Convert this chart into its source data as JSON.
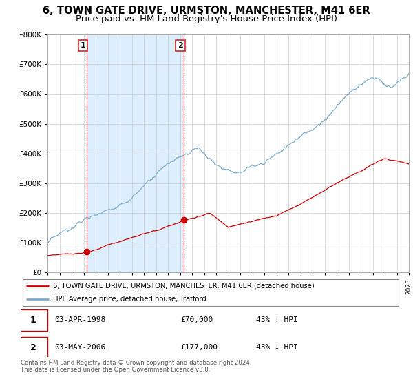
{
  "title": "6, TOWN GATE DRIVE, URMSTON, MANCHESTER, M41 6ER",
  "subtitle": "Price paid vs. HM Land Registry's House Price Index (HPI)",
  "red_label": "6, TOWN GATE DRIVE, URMSTON, MANCHESTER, M41 6ER (detached house)",
  "blue_label": "HPI: Average price, detached house, Trafford",
  "footer": "Contains HM Land Registry data © Crown copyright and database right 2024.\nThis data is licensed under the Open Government Licence v3.0.",
  "table": [
    {
      "num": "1",
      "date": "03-APR-1998",
      "price": "£70,000",
      "hpi": "43% ↓ HPI"
    },
    {
      "num": "2",
      "date": "03-MAY-2006",
      "price": "£177,000",
      "hpi": "43% ↓ HPI"
    }
  ],
  "marker1_year": 1998.25,
  "marker2_year": 2006.33,
  "marker1_red_value": 70000,
  "marker2_red_value": 177000,
  "ylim": [
    0,
    800000
  ],
  "xlim_start": 1995,
  "xlim_end": 2025,
  "red_color": "#cc0000",
  "blue_color": "#7aadcf",
  "fill_color": "#ddeeff",
  "vline_color": "#dd2222",
  "grid_color": "#cccccc",
  "background_color": "#ffffff",
  "title_fontsize": 10.5,
  "subtitle_fontsize": 9.5
}
